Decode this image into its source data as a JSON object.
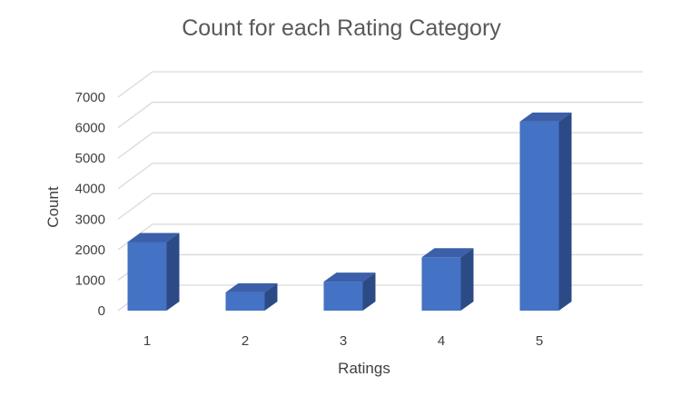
{
  "chart_data": {
    "type": "bar",
    "style": "3d-column",
    "title": "Count for each Rating Category",
    "xlabel": "Ratings",
    "ylabel": "Count",
    "categories": [
      "1",
      "2",
      "3",
      "4",
      "5"
    ],
    "values": [
      2250,
      600,
      950,
      1750,
      6200
    ],
    "ylim": [
      0,
      7000
    ],
    "yticks": [
      "0",
      "1000",
      "2000",
      "3000",
      "4000",
      "5000",
      "6000",
      "7000"
    ],
    "grid": true,
    "legend": "none",
    "colors": {
      "bar_front": "#4472c4",
      "bar_top": "#3b5fa8",
      "bar_side": "#2c4a86",
      "grid": "#d9d9d9"
    }
  }
}
